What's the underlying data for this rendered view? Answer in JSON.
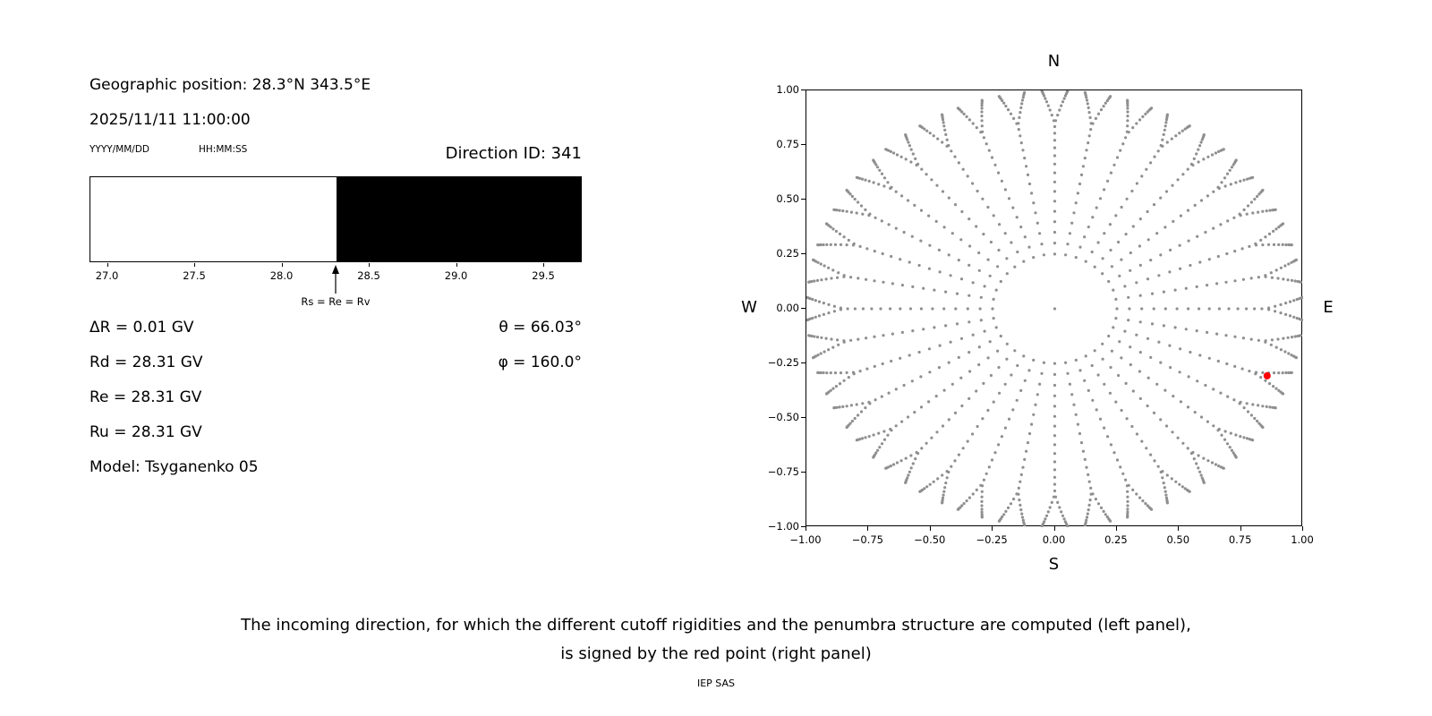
{
  "left_panel": {
    "geographic_position": "Geographic position: 28.3°N 343.5°E",
    "datetime": "2025/11/11 11:00:00",
    "date_format": "YYYY/MM/DD",
    "time_format": "HH:MM:SS",
    "direction_id": "Direction ID: 341",
    "stats_left": [
      "ΔR = 0.01 GV",
      "Rd = 28.31 GV",
      "Re = 28.31 GV",
      "Ru = 28.31 GV",
      "Model: Tsyganenko 05"
    ],
    "stats_right": [
      "θ = 66.03°",
      "φ = 160.0°"
    ]
  },
  "caption": {
    "line1": "The incoming direction, for which the different cutoff rigidities and the penumbra structure are computed (left panel),",
    "line2": "is signed by the red point (right panel)",
    "credit": "IEP SAS"
  },
  "chart_data": [
    {
      "type": "area",
      "name": "penumbra-structure",
      "xlim": [
        26.9,
        29.72
      ],
      "xticks": [
        27.0,
        27.5,
        28.0,
        28.5,
        29.0,
        29.5
      ],
      "xtick_labels": [
        "27.0",
        "27.5",
        "28.0",
        "28.5",
        "29.0",
        "29.5"
      ],
      "regions": [
        {
          "from": 26.9,
          "to": 28.31,
          "color": "#ffffff"
        },
        {
          "from": 28.31,
          "to": 29.72,
          "color": "#000000"
        }
      ],
      "marker": {
        "x": 28.31,
        "label": "Rs = Re = Rv"
      }
    },
    {
      "type": "scatter",
      "name": "incoming-direction-map",
      "xlim": [
        -1,
        1
      ],
      "ylim": [
        -1,
        1
      ],
      "xticks": [
        -1,
        -0.75,
        -0.5,
        -0.25,
        0,
        0.25,
        0.5,
        0.75,
        1
      ],
      "yticks": [
        1,
        0.75,
        0.5,
        0.25,
        0,
        -0.25,
        -0.5,
        -0.75,
        -1
      ],
      "xtick_labels": [
        "−1.00",
        "−0.75",
        "−0.50",
        "−0.25",
        "0.00",
        "0.25",
        "0.50",
        "0.75",
        "1.00"
      ],
      "ytick_labels": [
        "1.00",
        "0.75",
        "0.50",
        "0.25",
        "0.00",
        "−0.25",
        "−0.50",
        "−0.75",
        "−1.00"
      ],
      "compass": {
        "top": "N",
        "bottom": "S",
        "left": "W",
        "right": "E"
      },
      "dot_grid": {
        "azimuth_step_deg": 10,
        "zenith_start_deg": 14.5,
        "zenith_end_deg": 88,
        "zenith_step_deg": 3,
        "projection": "r = sin(zenith)",
        "fork_start_r": 0.85,
        "fork_max_deg": 3,
        "center_dot": true,
        "color": "#8f8f8f"
      },
      "red_point": {
        "x": 0.855,
        "y": -0.307,
        "color": "#ff0000"
      }
    }
  ]
}
